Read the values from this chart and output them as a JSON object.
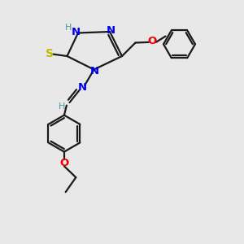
{
  "bg_color": "#e8e8e8",
  "bond_color": "#1a1a1a",
  "N_color": "#0000ee",
  "O_color": "#ee0000",
  "S_color": "#bbbb00",
  "H_color": "#4d9999",
  "figsize": [
    3.0,
    3.0
  ],
  "dpi": 100,
  "xlim": [
    0,
    10
  ],
  "ylim": [
    0,
    10
  ]
}
